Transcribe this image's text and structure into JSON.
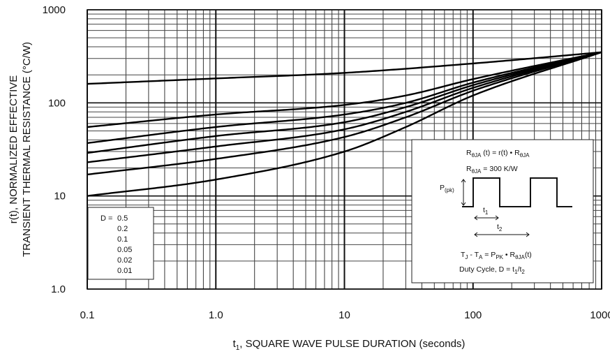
{
  "chart_data": {
    "type": "line",
    "x_scale": "log",
    "y_scale": "log",
    "xlim": [
      0.1,
      1000
    ],
    "ylim": [
      1.0,
      1000
    ],
    "grid": true,
    "xlabel": {
      "pre": "t",
      "sub": "1",
      "post": ", SQUARE WAVE PULSE DURATION (seconds)"
    },
    "ylabel_lines": [
      "r(t), NORMALIZED EFFECTIVE",
      "TRANSIENT THERMAL RESISTANCE (°C/W)"
    ],
    "x_ticks": [
      {
        "value": 0.1,
        "label": "0.1"
      },
      {
        "value": 1,
        "label": "1.0"
      },
      {
        "value": 10,
        "label": "10"
      },
      {
        "value": 100,
        "label": "100"
      },
      {
        "value": 1000,
        "label": "1000"
      }
    ],
    "y_ticks": [
      {
        "value": 1,
        "label": "1.0"
      },
      {
        "value": 10,
        "label": "10"
      },
      {
        "value": 100,
        "label": "100"
      },
      {
        "value": 1000,
        "label": "1000"
      }
    ],
    "legend": {
      "title": "D =",
      "entries": [
        "0.5",
        "0.2",
        "0.1",
        "0.05",
        "0.02",
        "0.01"
      ],
      "placement": "bottom-left"
    },
    "series": [
      {
        "x": [
          0.1,
          1,
          10,
          100,
          1000
        ],
        "y": [
          160,
          183,
          210,
          265,
          350
        ]
      },
      {
        "x": [
          0.1,
          1,
          10,
          30,
          100,
          1000
        ],
        "y": [
          55,
          75,
          95,
          120,
          180,
          350
        ]
      },
      {
        "x": [
          0.1,
          1,
          10,
          30,
          100,
          1000
        ],
        "y": [
          37,
          55,
          75,
          100,
          165,
          350
        ]
      },
      {
        "x": [
          0.1,
          1,
          10,
          30,
          100,
          1000
        ],
        "y": [
          29,
          44,
          62,
          90,
          155,
          350
        ]
      },
      {
        "x": [
          0.1,
          1,
          10,
          30,
          100,
          1000
        ],
        "y": [
          23,
          34,
          52,
          80,
          145,
          350
        ]
      },
      {
        "x": [
          0.1,
          1,
          10,
          30,
          100,
          1000
        ],
        "y": [
          17,
          25,
          43,
          70,
          135,
          350
        ]
      },
      {
        "x": [
          0.1,
          1,
          10,
          30,
          100,
          1000
        ],
        "y": [
          10,
          15,
          30,
          55,
          120,
          350
        ]
      }
    ],
    "inset": {
      "formula1": {
        "main": "R",
        "sub": "θJA",
        "rest": " (t) = r(t) • R",
        "sub2": "θJA"
      },
      "formula2": {
        "main": "R",
        "sub": "θJA",
        "rest": " =  300 K/W"
      },
      "pulse_label": {
        "main": "P",
        "sub": "(pk)"
      },
      "t1_label": {
        "main": "t",
        "sub": "1"
      },
      "t2_label": {
        "main": "t",
        "sub": "2"
      },
      "formula3": {
        "a": "T",
        "a_sub": "J",
        "b": " - T",
        "b_sub": "A",
        "c": " = P",
        "c_sub": "PK",
        "d": " • R",
        "d_sub": "θJA",
        "e": "(t)"
      },
      "duty": {
        "pre": "Duty Cycle, D = t",
        "s1": "1",
        "mid": "/t",
        "s2": "2"
      }
    }
  }
}
